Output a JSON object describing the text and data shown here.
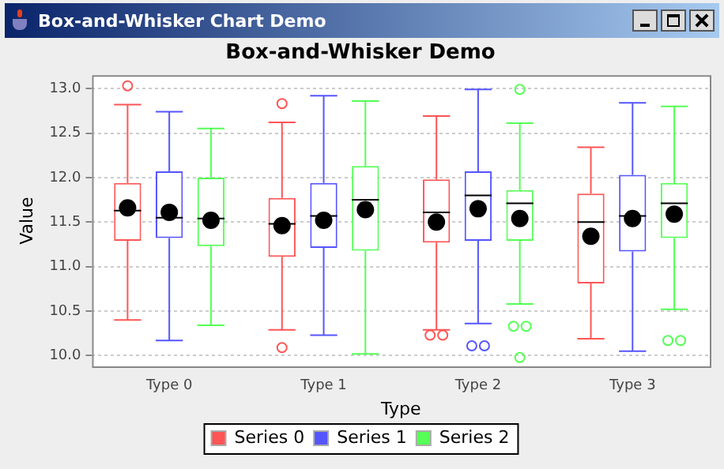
{
  "chart_data": {
    "type": "box",
    "title": "Box-and-Whisker Demo",
    "xlabel": "Type",
    "ylabel": "Value",
    "annotations": [
      "Box-and-Whisker Chart Demo"
    ],
    "categories": [
      "Type 0",
      "Type 1",
      "Type 2",
      "Type 3"
    ],
    "series": [
      {
        "name": "Series 0",
        "color": "#ff5555",
        "boxes": [
          {
            "low": 10.4,
            "q1": 11.29,
            "median": 11.63,
            "q3": 11.94,
            "high": 12.82,
            "mean": 11.66,
            "outliers": [
              13.03
            ]
          },
          {
            "low": 10.29,
            "q1": 11.11,
            "median": 11.48,
            "q3": 11.77,
            "high": 12.62,
            "mean": 11.46,
            "outliers": [
              12.83,
              10.09
            ]
          },
          {
            "low": 10.29,
            "q1": 11.27,
            "median": 11.61,
            "q3": 11.98,
            "high": 12.69,
            "mean": 11.5,
            "outliers": [
              10.23,
              10.23
            ]
          },
          {
            "low": 10.19,
            "q1": 10.81,
            "median": 11.5,
            "q3": 11.82,
            "high": 12.34,
            "mean": 11.34
          }
        ]
      },
      {
        "name": "Series 1",
        "color": "#5555ff",
        "boxes": [
          {
            "low": 10.17,
            "q1": 11.32,
            "median": 11.55,
            "q3": 12.07,
            "high": 12.74,
            "mean": 11.61
          },
          {
            "low": 10.23,
            "q1": 11.21,
            "median": 11.57,
            "q3": 11.94,
            "high": 12.92,
            "mean": 11.52
          },
          {
            "low": 10.36,
            "q1": 11.29,
            "median": 11.8,
            "q3": 12.07,
            "high": 12.99,
            "mean": 11.65,
            "outliers": [
              10.11,
              10.11
            ]
          },
          {
            "low": 10.05,
            "q1": 11.17,
            "median": 11.57,
            "q3": 12.03,
            "high": 12.84,
            "mean": 11.54
          }
        ]
      },
      {
        "name": "Series 2",
        "color": "#55ff55",
        "boxes": [
          {
            "low": 10.34,
            "q1": 11.23,
            "median": 11.54,
            "q3": 12.0,
            "high": 12.55,
            "mean": 11.52
          },
          {
            "low": 10.02,
            "q1": 11.18,
            "median": 11.75,
            "q3": 12.13,
            "high": 12.86,
            "mean": 11.64
          },
          {
            "low": 10.58,
            "q1": 11.29,
            "median": 11.71,
            "q3": 11.86,
            "high": 12.61,
            "mean": 11.54,
            "outliers": [
              12.99,
              10.33,
              10.33,
              9.98
            ]
          },
          {
            "low": 10.52,
            "q1": 11.32,
            "median": 11.71,
            "q3": 11.94,
            "high": 12.8,
            "mean": 11.59,
            "outliers": [
              10.17,
              10.17
            ]
          }
        ]
      }
    ],
    "ylim": [
      9.88,
      13.15
    ],
    "yticks": [
      {
        "value": 10,
        "label": "10.0"
      },
      {
        "value": 10.5,
        "label": "10.5"
      },
      {
        "value": 11,
        "label": "11.0"
      },
      {
        "value": 11.5,
        "label": "11.5"
      },
      {
        "value": 12,
        "label": "12.0"
      },
      {
        "value": 12.5,
        "label": "12.5"
      },
      {
        "value": 13,
        "label": "13.0"
      }
    ],
    "grid": "y",
    "legend": "bottom"
  }
}
